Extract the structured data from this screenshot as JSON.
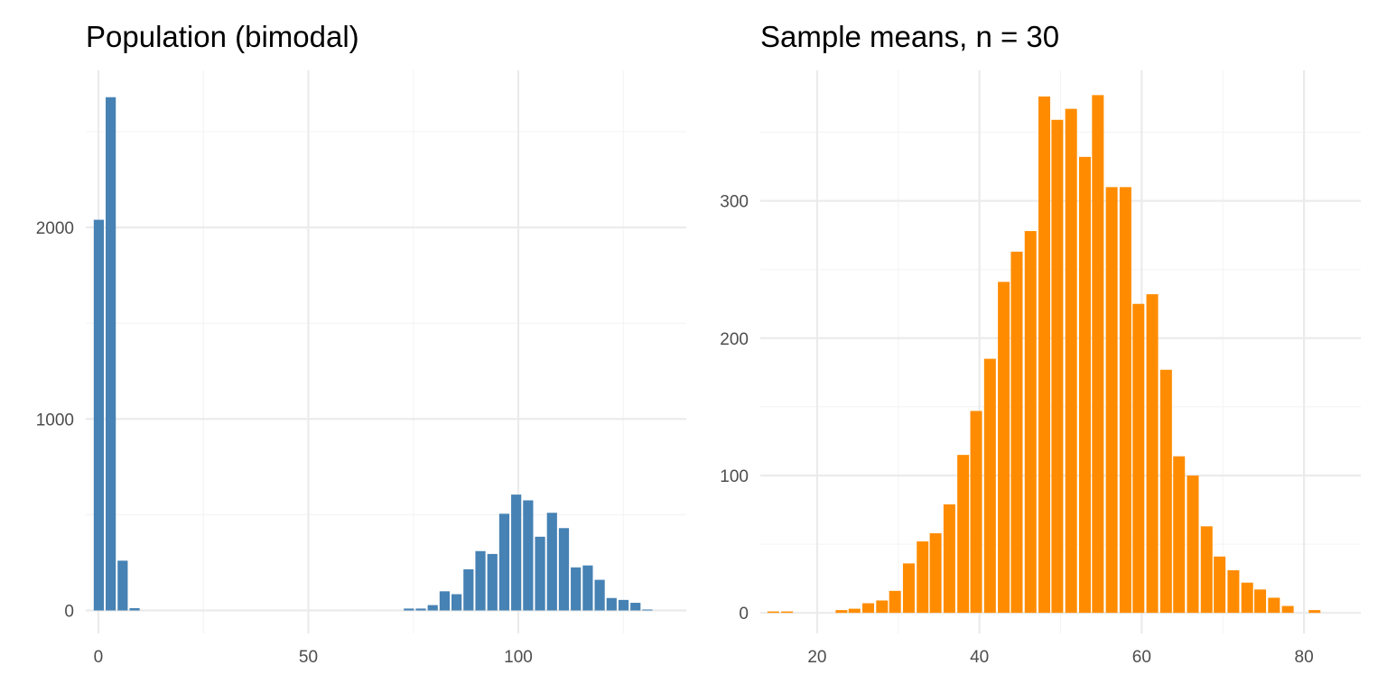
{
  "colors": {
    "left_bar": "#4682b4",
    "right_bar": "#ff8c00",
    "grid_major": "#ebebeb",
    "grid_minor": "#f4f4f4",
    "tick_text": "#4d4d4d"
  },
  "chart_data": [
    {
      "type": "bar",
      "title": "Population (bimodal)",
      "xlabel": "",
      "ylabel": "",
      "xlim": [
        -3,
        140
      ],
      "ylim": [
        -120,
        2820
      ],
      "x_ticks": [
        0,
        50,
        100
      ],
      "x_tick_labels": [
        "0",
        "50",
        "100"
      ],
      "y_ticks": [
        0,
        1000,
        2000
      ],
      "y_tick_labels": [
        "0",
        "1000",
        "2000"
      ],
      "grid": true,
      "bin_width": 2.84,
      "x": [
        0.1,
        2.94,
        5.78,
        8.62,
        11.46,
        14.3,
        17.14,
        19.98,
        22.82,
        25.66,
        28.5,
        31.34,
        34.18,
        37.02,
        39.86,
        42.7,
        45.54,
        48.38,
        51.22,
        54.06,
        56.9,
        59.74,
        62.58,
        65.42,
        68.26,
        71.1,
        73.94,
        76.78,
        79.62,
        82.46,
        85.3,
        88.14,
        90.98,
        93.82,
        96.66,
        99.5,
        102.34,
        105.18,
        108.02,
        110.86,
        113.7,
        116.54,
        119.38,
        122.22,
        125.06,
        127.9,
        130.74
      ],
      "values": [
        2040,
        2680,
        260,
        12,
        0,
        0,
        0,
        0,
        0,
        0,
        0,
        0,
        0,
        0,
        0,
        0,
        0,
        0,
        0,
        0,
        0,
        0,
        0,
        0,
        0,
        0,
        10,
        10,
        28,
        100,
        85,
        215,
        310,
        295,
        505,
        605,
        575,
        385,
        510,
        430,
        225,
        235,
        160,
        65,
        55,
        40,
        5
      ]
    },
    {
      "type": "bar",
      "title": "Sample means, n = 30",
      "xlabel": "",
      "ylabel": "",
      "xlim": [
        13,
        87
      ],
      "ylim": [
        -15,
        395
      ],
      "x_ticks": [
        20,
        40,
        60,
        80
      ],
      "x_tick_labels": [
        "20",
        "40",
        "60",
        "80"
      ],
      "y_ticks": [
        0,
        100,
        200,
        300
      ],
      "y_tick_labels": [
        "0",
        "100",
        "200",
        "300"
      ],
      "grid": true,
      "bin_width": 1.67,
      "x": [
        14.6,
        16.3,
        18.0,
        19.6,
        21.3,
        23.0,
        24.6,
        26.3,
        28.0,
        29.6,
        31.3,
        33.0,
        34.6,
        36.3,
        38.0,
        39.6,
        41.3,
        43.0,
        44.6,
        46.3,
        48.0,
        49.6,
        51.3,
        53.0,
        54.6,
        56.3,
        58.0,
        59.6,
        61.3,
        63.0,
        64.6,
        66.3,
        68.0,
        69.6,
        71.3,
        73.0,
        74.6,
        76.3,
        78.0,
        79.6,
        81.3
      ],
      "values": [
        1,
        1,
        0,
        0,
        0,
        2,
        3,
        7,
        9,
        16,
        36,
        52,
        58,
        79,
        115,
        147,
        185,
        241,
        263,
        278,
        376,
        359,
        367,
        332,
        377,
        310,
        310,
        225,
        232,
        177,
        114,
        100,
        63,
        41,
        31,
        22,
        17,
        11,
        5,
        0,
        2
      ]
    }
  ]
}
